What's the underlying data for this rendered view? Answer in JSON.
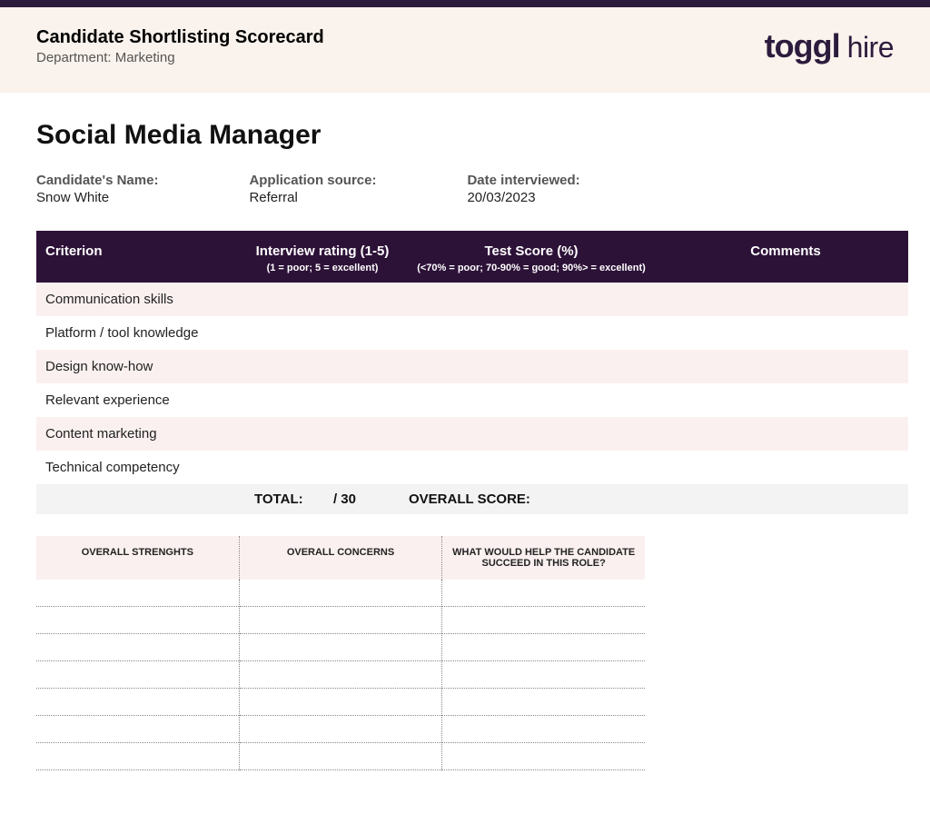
{
  "header": {
    "title": "Candidate Shortlisting Scorecard",
    "subtitle": "Department: Marketing",
    "logo_main": "toggl",
    "logo_sub": "hire"
  },
  "role_title": "Social Media Manager",
  "candidate": {
    "name_label": "Candidate's Name:",
    "name_value": "Snow White",
    "source_label": "Application source:",
    "source_value": "Referral",
    "date_label": "Date interviewed:",
    "date_value": "20/03/2023"
  },
  "table": {
    "headers": {
      "criterion": "Criterion",
      "rating": "Interview rating (1-5)",
      "rating_hint": "(1 = poor; 5 = excellent)",
      "score": "Test Score (%)",
      "score_hint": "(<70% = poor; 70-90% = good; 90%> = excellent)",
      "comments": "Comments"
    },
    "criteria": [
      "Communication skills",
      "Platform / tool knowledge",
      "Design know-how",
      "Relevant experience",
      "Content marketing",
      "Technical competency"
    ],
    "total_label": "TOTAL:",
    "total_max": "/ 30",
    "overall_label": "OVERALL SCORE:"
  },
  "notes": {
    "strengths": "OVERALL STRENGHTS",
    "concerns": "OVERALL CONCERNS",
    "help": "WHAT WOULD HELP THE CANDIDATE SUCCEED IN THIS ROLE?",
    "line_count": 7
  },
  "colors": {
    "topbar": "#2d1b3d",
    "header_bg": "#faf2ec",
    "thead_bg": "#2d1238",
    "alt_row": "#fbf0f0",
    "total_bg": "#f3f3f3",
    "dotted": "#888888"
  }
}
